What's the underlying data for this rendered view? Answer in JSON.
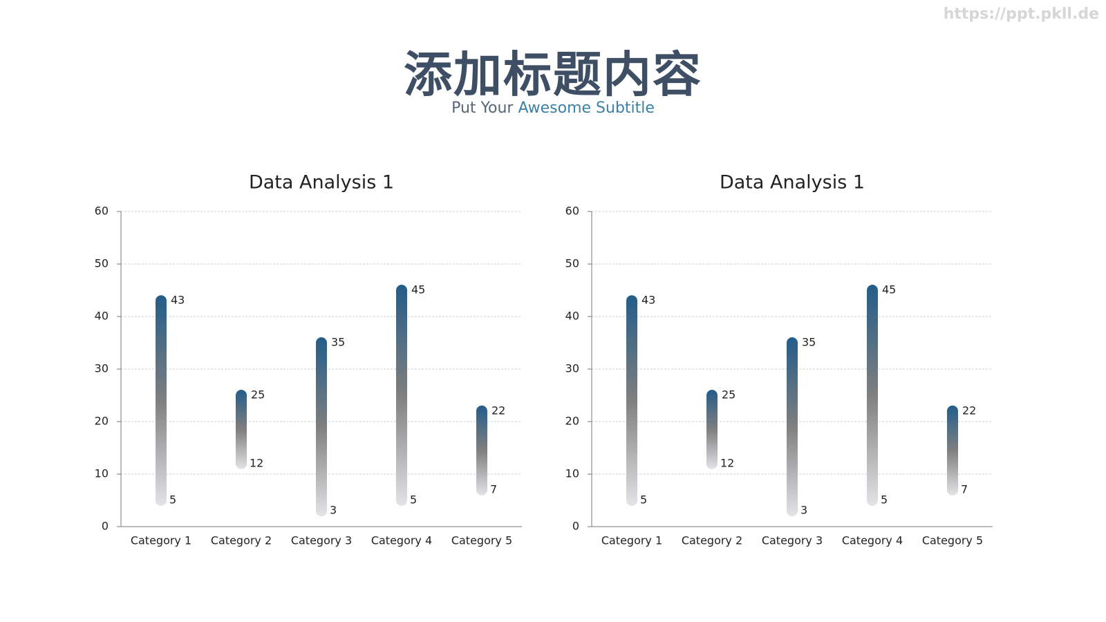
{
  "header": {
    "title": "添加标题内容",
    "subtitle": [
      "Put Your",
      "Awesome Subtitle"
    ],
    "watermark": "https://ppt.pkll.de"
  },
  "chart_data": [
    {
      "type": "floating-bar",
      "title": "Data Analysis 1",
      "categories": [
        "Category 1",
        "Category 2",
        "Category 3",
        "Category 4",
        "Category 5"
      ],
      "low": [
        5,
        12,
        3,
        5,
        7
      ],
      "high": [
        43,
        25,
        35,
        45,
        22
      ],
      "colors": [
        "#245d8a",
        "#7f7f7f",
        "#e3e3e8"
      ],
      "ylim": [
        0,
        60
      ],
      "yticks": [
        0,
        10,
        20,
        30,
        40,
        50,
        60
      ],
      "grid": true
    },
    {
      "type": "floating-bar",
      "title": "Data Analysis 1",
      "categories": [
        "Category 1",
        "Category 2",
        "Category 3",
        "Category 4",
        "Category 5"
      ],
      "low": [
        5,
        12,
        3,
        5,
        7
      ],
      "high": [
        43,
        25,
        35,
        45,
        22
      ],
      "colors": [
        "#245d8a",
        "#7f7f7f",
        "#e3e3e8"
      ],
      "ylim": [
        0,
        60
      ],
      "yticks": [
        0,
        10,
        20,
        30,
        40,
        50,
        60
      ],
      "grid": true
    }
  ]
}
